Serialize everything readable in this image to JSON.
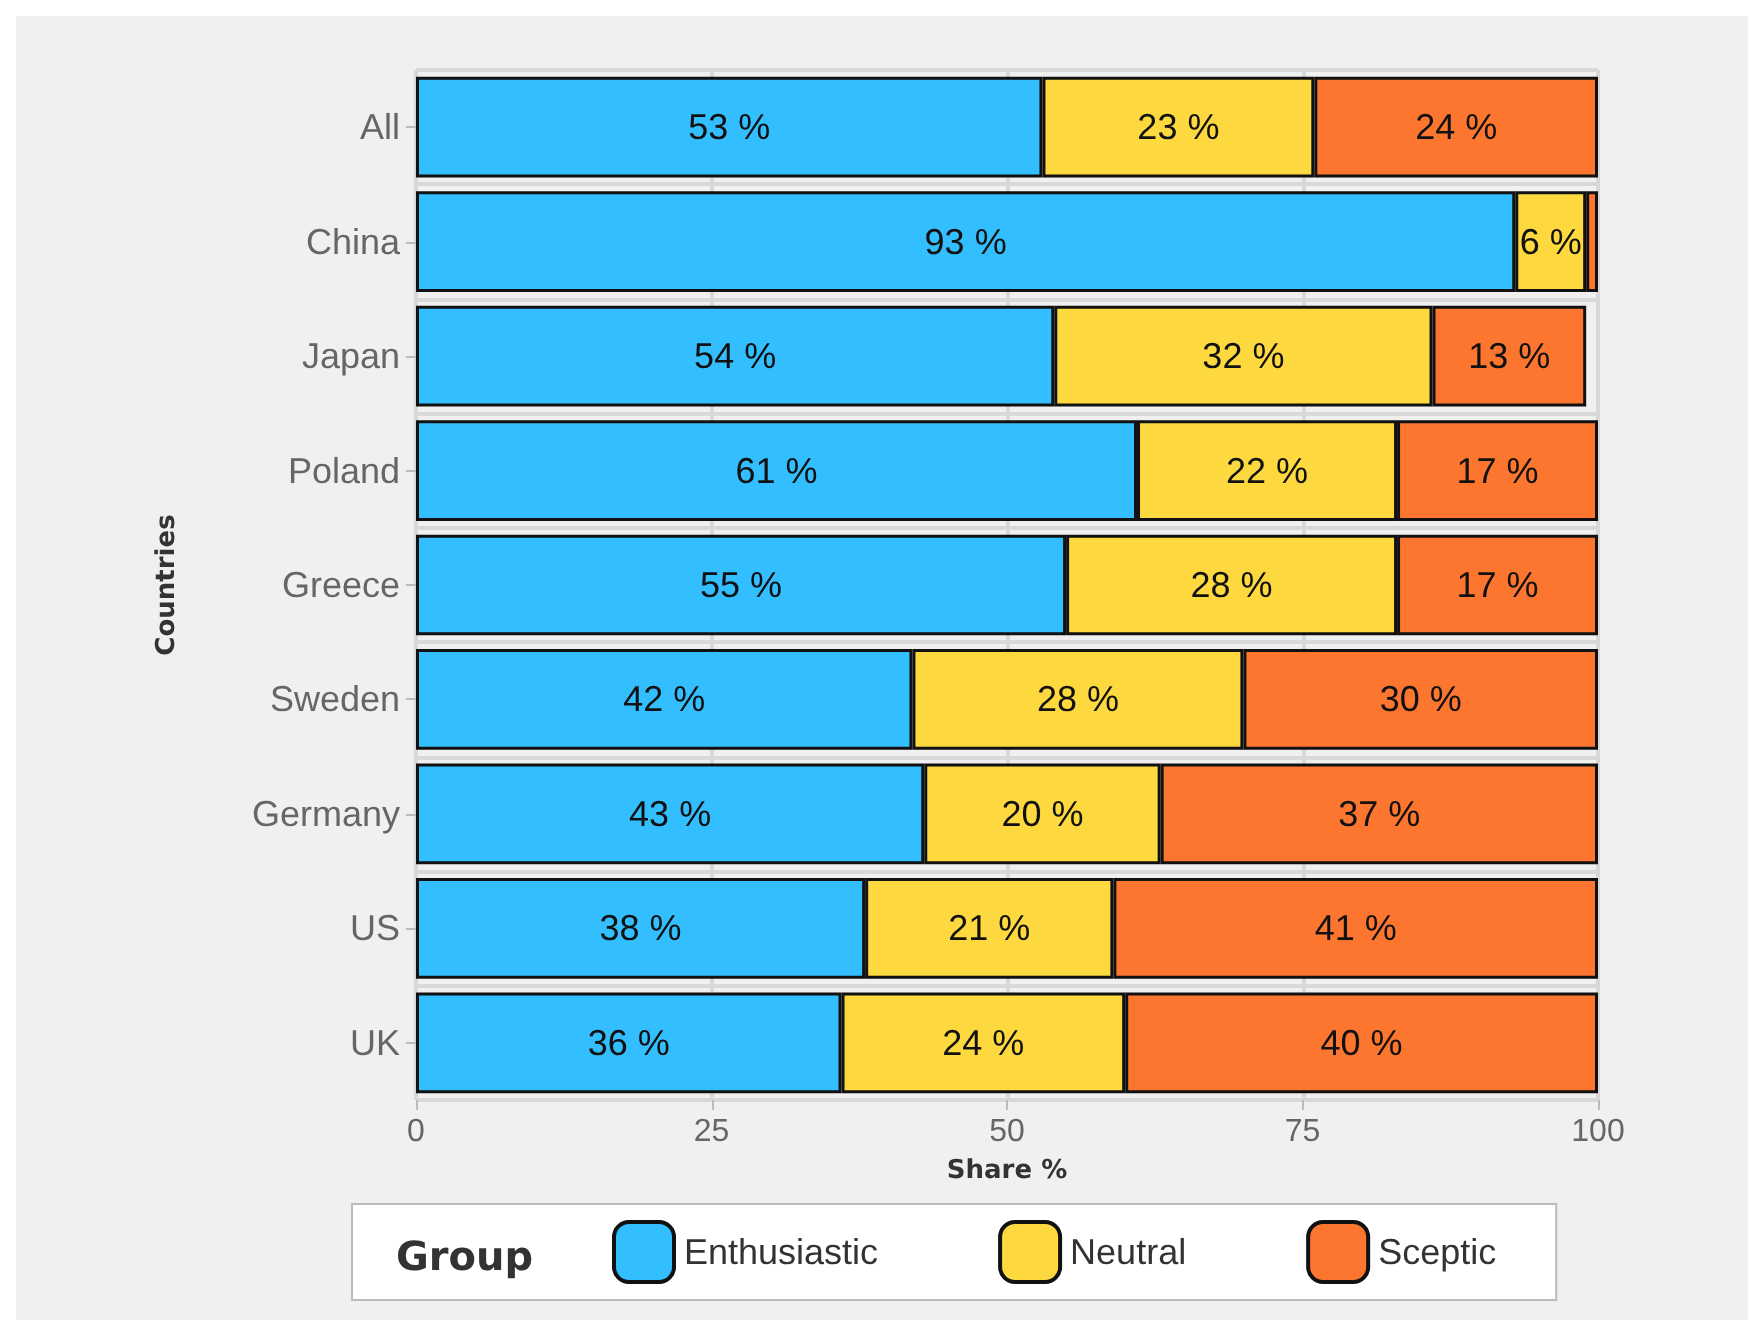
{
  "chart_data": {
    "type": "bar",
    "orientation": "horizontal",
    "stacked": true,
    "xlabel": "Share %",
    "ylabel": "Countries",
    "legend_title": "Group",
    "legend": "bottom",
    "grid": true,
    "categories": [
      "All",
      "China",
      "Japan",
      "Poland",
      "Greece",
      "Sweden",
      "Germany",
      "US",
      "UK"
    ],
    "xlim": [
      0,
      100
    ],
    "xticks": [
      0,
      25,
      50,
      75,
      100
    ],
    "series": [
      {
        "name": "Enthusiastic",
        "color": "#33bfff",
        "values": [
          53,
          93,
          54,
          61,
          55,
          42,
          43,
          38,
          36
        ],
        "value_labels": [
          "53 %",
          "93 %",
          "54 %",
          "61 %",
          "55 %",
          "42 %",
          "43 %",
          "38 %",
          "36 %"
        ]
      },
      {
        "name": "Neutral",
        "color": "#fdd93f",
        "values": [
          23,
          6,
          32,
          22,
          28,
          28,
          20,
          21,
          24
        ],
        "value_labels": [
          "23 %",
          "6 %",
          "32 %",
          "22 %",
          "28 %",
          "28 %",
          "20 %",
          "21 %",
          "24 %"
        ]
      },
      {
        "name": "Sceptic",
        "color": "#fd7630",
        "values": [
          24,
          1,
          13,
          17,
          17,
          30,
          37,
          41,
          40
        ],
        "value_labels": [
          "24 %",
          null,
          "13 %",
          "17 %",
          "17 %",
          "30 %",
          "37 %",
          "41 %",
          "40 %"
        ]
      }
    ]
  }
}
